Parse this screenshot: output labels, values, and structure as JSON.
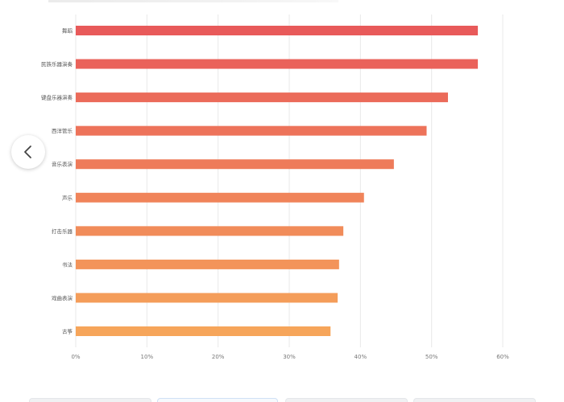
{
  "chart_data": {
    "type": "bar",
    "orientation": "horizontal",
    "categories": [
      "舞蹈",
      "民族乐器演奏",
      "键盘乐器演奏",
      "西洋管乐",
      "音乐表演",
      "声乐",
      "打击乐器",
      "书法",
      "戏曲表演",
      "古筝"
    ],
    "values": [
      56.5,
      56.5,
      52.3,
      49.3,
      44.7,
      40.5,
      37.6,
      37.0,
      36.8,
      35.8
    ],
    "xticks": [
      "0%",
      "10%",
      "20%",
      "30%",
      "40%",
      "50%",
      "60%"
    ],
    "xlim": [
      0,
      60
    ],
    "grid": true,
    "colors": {
      "top": "#e85a5a",
      "bottom": "#f6a55a"
    }
  },
  "carousel": {
    "prev_icon": "chevron-left-icon"
  }
}
